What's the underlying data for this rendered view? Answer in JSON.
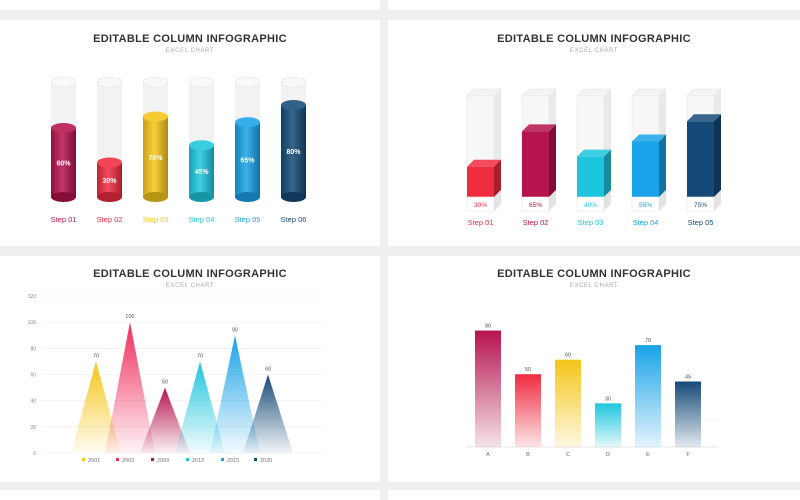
{
  "colors": {
    "crimson": "#b5134d",
    "red": "#ef2b3f",
    "yellow": "#f5c519",
    "cyan": "#1ec6dd",
    "blue": "#1aa3e8",
    "navy": "#154a78"
  },
  "chart_data": [
    {
      "type": "bar",
      "title": "EDITABLE COLUMN INFOGRAPHIC",
      "subtitle": "EXCEL CHART",
      "categories": [
        "Step 01",
        "Step 02",
        "Step 03",
        "Step 04",
        "Step 05",
        "Step 06"
      ],
      "values": [
        60,
        30,
        70,
        45,
        65,
        80
      ],
      "value_labels": [
        "60%",
        "30%",
        "70%",
        "45%",
        "65%",
        "80%"
      ],
      "ylim": [
        0,
        100
      ],
      "style": "cylinder",
      "colors": [
        "#b5134d",
        "#ef2b3f",
        "#f5c519",
        "#1ec6dd",
        "#1aa3e8",
        "#154a78"
      ]
    },
    {
      "type": "bar",
      "title": "EDITABLE COLUMN INFOGRAPHIC",
      "subtitle": "EXCEL CHART",
      "categories": [
        "Step 01",
        "Step 02",
        "Step 03",
        "Step 04",
        "Step 05"
      ],
      "values": [
        30,
        65,
        40,
        55,
        75
      ],
      "value_labels": [
        "30%",
        "65%",
        "40%",
        "55%",
        "75%"
      ],
      "ylim": [
        0,
        100
      ],
      "style": "box",
      "colors": [
        "#ef2b3f",
        "#b5134d",
        "#1ec6dd",
        "#1aa3e8",
        "#154a78"
      ]
    },
    {
      "type": "bar",
      "title": "EDITABLE COLUMN INFOGRAPHIC",
      "subtitle": "EXCEL CHART",
      "categories": [
        "2001",
        "2003",
        "2009",
        "2012",
        "2015",
        "2020"
      ],
      "values": [
        70,
        100,
        50,
        70,
        90,
        60
      ],
      "value_labels": [
        "70",
        "100",
        "50",
        "70",
        "90",
        "60"
      ],
      "ylim": [
        0,
        120
      ],
      "yticks": [
        "0",
        "20",
        "40",
        "60",
        "80",
        "100",
        "120"
      ],
      "style": "triangle",
      "grid": true,
      "legend": "bottom",
      "colors": [
        "#f5c519",
        "#ef2b5a",
        "#b5134d",
        "#1ec6dd",
        "#1aa3e8",
        "#154a78"
      ]
    },
    {
      "type": "bar",
      "title": "EDITABLE COLUMN INFOGRAPHIC",
      "subtitle": "EXCEL CHART",
      "categories": [
        "A",
        "B",
        "C",
        "D",
        "E",
        "F"
      ],
      "values": [
        80,
        50,
        60,
        30,
        70,
        45
      ],
      "value_labels": [
        "80",
        "50",
        "60",
        "30",
        "70",
        "45"
      ],
      "ylim": [
        0,
        90
      ],
      "style": "gradient",
      "colors": [
        "#b5134d",
        "#ef2b3f",
        "#f5c519",
        "#1ec6dd",
        "#1aa3e8",
        "#154a78"
      ]
    }
  ]
}
